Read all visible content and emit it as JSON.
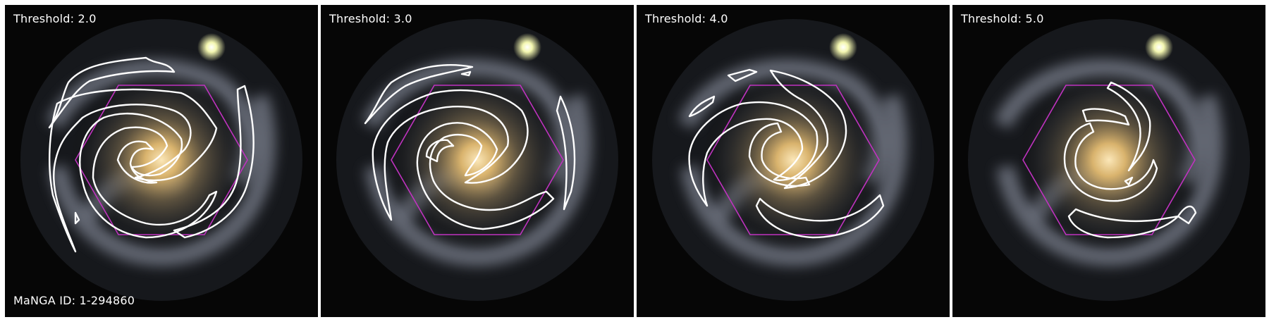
{
  "panels": [
    {
      "label": "Threshold: 2.0"
    },
    {
      "label": "Threshold: 3.0"
    },
    {
      "label": "Threshold: 4.0"
    },
    {
      "label": "Threshold: 5.0"
    }
  ],
  "manga_id": "MaNGA ID: 1-294860",
  "colors": {
    "background": "#050505",
    "contour": "#ffffff",
    "hexagon": "#c032c0",
    "core": "#e9c98a",
    "star": "#f4f7b0",
    "arms": "#8a8f9a"
  }
}
